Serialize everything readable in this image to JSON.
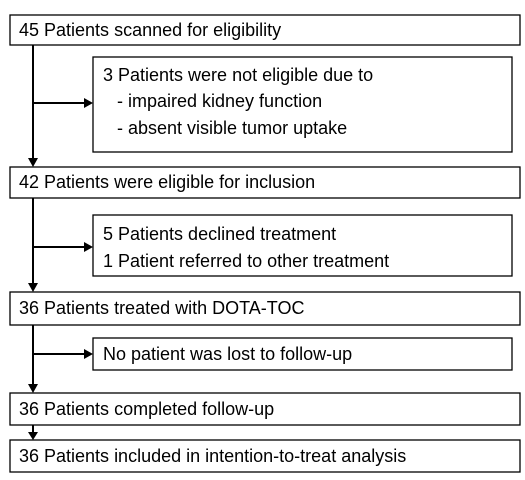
{
  "nodes": [
    {
      "label": "45 Patients scanned for eligibility"
    },
    {
      "lines": [
        "3 Patients were not eligible due to",
        "- impaired kidney function",
        "- absent visible tumor uptake"
      ]
    },
    {
      "label": "42 Patients were eligible for inclusion"
    },
    {
      "lines": [
        "5 Patients declined treatment",
        "1 Patient referred to other treatment"
      ]
    },
    {
      "label": "36 Patients treated with DOTA-TOC"
    },
    {
      "label": "No patient was lost to follow-up"
    },
    {
      "label": "36 Patients completed follow-up"
    },
    {
      "label": "36 Patients included in intention-to-treat analysis"
    }
  ]
}
